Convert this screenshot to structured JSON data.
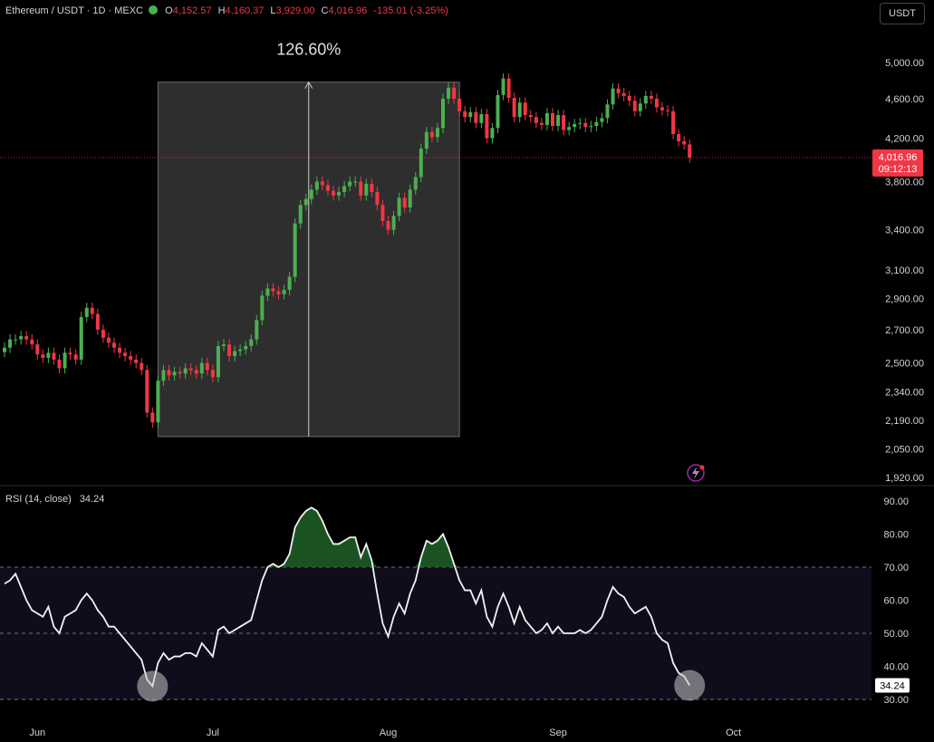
{
  "header": {
    "symbol": "Ethereum / USDT · 1D · MEXC",
    "ohlc": [
      {
        "k": "O",
        "v": "4,152.57"
      },
      {
        "k": "H",
        "v": "4,160.37"
      },
      {
        "k": "L",
        "v": "3,929.00"
      },
      {
        "k": "C",
        "v": "4,016.96"
      }
    ],
    "change": "-135.01 (-3.25%)",
    "currency": "USDT"
  },
  "colors": {
    "up": "#4caf50",
    "down": "#f23645",
    "background": "#000000",
    "range_box": "#2e2e2e",
    "rsi_band": "#100c1c"
  },
  "chart_data": [
    {
      "type": "candlestick",
      "title": "Ethereum / USDT · 1D · MEXC",
      "x_ticks": [
        "Jun",
        "Jul",
        "Aug",
        "Sep",
        "Oct"
      ],
      "y_scale": "log",
      "y_ticks": [
        "5,000.00",
        "4,600.00",
        "4,200.00",
        "3,800.00",
        "3,400.00",
        "3,100.00",
        "2,900.00",
        "2,700.00",
        "2,500.00",
        "2,340.00",
        "2,190.00",
        "2,050.00",
        "1,920.00"
      ],
      "ylim": [
        1920,
        5150
      ],
      "last_price": {
        "value": 4016.96,
        "label": "4,016.96",
        "countdown": "09:12:13"
      },
      "range_measure": {
        "label": "126.60%",
        "low": 2110,
        "high": 4780
      },
      "close": [
        2590,
        2640,
        2640,
        2660,
        2640,
        2610,
        2550,
        2530,
        2560,
        2520,
        2470,
        2560,
        2550,
        2520,
        2780,
        2840,
        2800,
        2700,
        2650,
        2620,
        2590,
        2560,
        2540,
        2520,
        2500,
        2460,
        2230,
        2180,
        2400,
        2460,
        2430,
        2450,
        2440,
        2470,
        2460,
        2440,
        2500,
        2460,
        2420,
        2600,
        2610,
        2540,
        2570,
        2580,
        2600,
        2640,
        2760,
        2920,
        2970,
        2950,
        2930,
        2960,
        3050,
        3450,
        3600,
        3650,
        3730,
        3800,
        3770,
        3720,
        3680,
        3710,
        3760,
        3800,
        3800,
        3680,
        3780,
        3710,
        3600,
        3470,
        3400,
        3510,
        3660,
        3580,
        3730,
        3840,
        4100,
        4260,
        4210,
        4300,
        4600,
        4720,
        4600,
        4470,
        4410,
        4460,
        4350,
        4440,
        4200,
        4300,
        4640,
        4820,
        4610,
        4410,
        4560,
        4430,
        4410,
        4350,
        4330,
        4450,
        4320,
        4430,
        4280,
        4310,
        4340,
        4350,
        4310,
        4320,
        4360,
        4400,
        4540,
        4710,
        4660,
        4630,
        4580,
        4470,
        4550,
        4630,
        4600,
        4510,
        4480,
        4470,
        4240,
        4170,
        4140,
        4017
      ],
      "rsi": {
        "label": "RSI (14, close)",
        "value": 34.24,
        "value_label": "34.24",
        "levels": [
          70,
          50,
          30
        ],
        "ylim": [
          30,
          90
        ],
        "y_ticks": [
          "90.00",
          "80.00",
          "70.00",
          "60.00",
          "50.00",
          "40.00",
          "30.00"
        ],
        "series": [
          65,
          66,
          68,
          64,
          60,
          57,
          56,
          55,
          58,
          52,
          50,
          55,
          56,
          57,
          60,
          62,
          60,
          57,
          55,
          52,
          52,
          50,
          48,
          46,
          44,
          42,
          36,
          34,
          41,
          44,
          42,
          43,
          43,
          44,
          44,
          43,
          47,
          45,
          43,
          51,
          52,
          50,
          51,
          52,
          53,
          54,
          60,
          66,
          70,
          71,
          70,
          71,
          74,
          82,
          85,
          87,
          88,
          87,
          84,
          80,
          77,
          77,
          78,
          79,
          79,
          73,
          77,
          72,
          62,
          53,
          49,
          55,
          59,
          56,
          62,
          66,
          73,
          78,
          77,
          78,
          80,
          76,
          71,
          66,
          63,
          63,
          59,
          63,
          55,
          52,
          58,
          62,
          58,
          53,
          58,
          54,
          52,
          50,
          51,
          53,
          50,
          52,
          50,
          50,
          50,
          51,
          50,
          51,
          53,
          55,
          60,
          64,
          62,
          61,
          58,
          56,
          57,
          58,
          55,
          50,
          48,
          47,
          41,
          38,
          37,
          34.24
        ]
      }
    }
  ]
}
